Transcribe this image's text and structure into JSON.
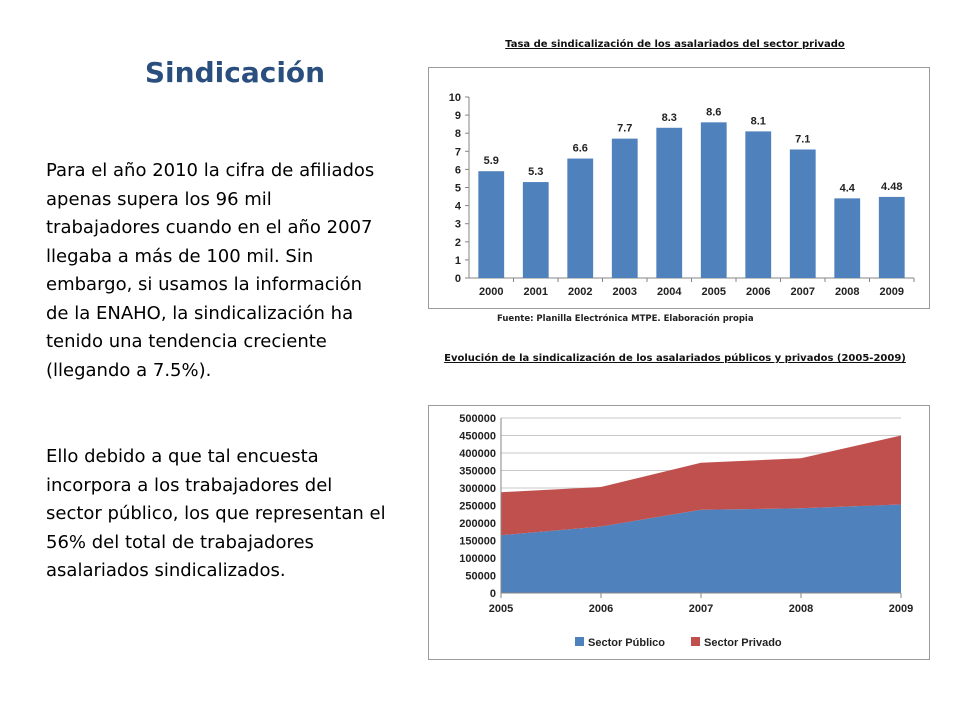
{
  "slide": {
    "title": "Sindicación",
    "paragraphs": [
      "Para el año 2010 la cifra de afiliados apenas supera los 96 mil trabajadores cuando en el año 2007 llegaba a más de  100 mil. Sin embargo, si usamos la información de la ENAHO, la sindicalización ha tenido una tendencia creciente (llegando a 7.5%).",
      "Ello debido a que tal encuesta incorpora a los trabajadores del sector público, los que representan el 56% del total de trabajadores asalariados sindicalizados."
    ]
  },
  "chart_data": [
    {
      "type": "bar",
      "title": "Tasa de sindicalización de los asalariados del sector privado",
      "source": "Fuente: Planilla Electrónica MTPE. Elaboración propia",
      "categories": [
        "2000",
        "2001",
        "2002",
        "2003",
        "2004",
        "2005",
        "2006",
        "2007",
        "2008",
        "2009"
      ],
      "values": [
        5.9,
        5.3,
        6.6,
        7.7,
        8.3,
        8.6,
        8.1,
        7.1,
        4.4,
        4.48
      ],
      "data_labels": [
        "5.9",
        "5.3",
        "6.6",
        "7.7",
        "8.3",
        "8.6",
        "8.1",
        "7.1",
        "4.4",
        "4.48"
      ],
      "yticks": [
        "0",
        "1",
        "2",
        "3",
        "4",
        "5",
        "6",
        "7",
        "8",
        "9",
        "10"
      ],
      "ylim": [
        0,
        10
      ],
      "color": "#4f81bd",
      "grid": false
    },
    {
      "type": "area",
      "stacked": true,
      "title": "Evolución  de la sindicalización   de los asalariados  públicos y privados (2005-2009)",
      "categories": [
        "2005",
        "2006",
        "2007",
        "2008",
        "2009"
      ],
      "series": [
        {
          "name": "Sector Público",
          "values": [
            165000,
            190000,
            238000,
            242000,
            253000
          ],
          "color": "#4f81bd"
        },
        {
          "name": "Sector Privado",
          "values": [
            123000,
            113000,
            134000,
            143000,
            197000
          ],
          "color": "#c0504d"
        }
      ],
      "yticks": [
        "0",
        "50000",
        "100000",
        "150000",
        "200000",
        "250000",
        "300000",
        "350000",
        "400000",
        "450000",
        "500000"
      ],
      "ylim": [
        0,
        500000
      ],
      "grid": true,
      "legend": "bottom"
    }
  ]
}
